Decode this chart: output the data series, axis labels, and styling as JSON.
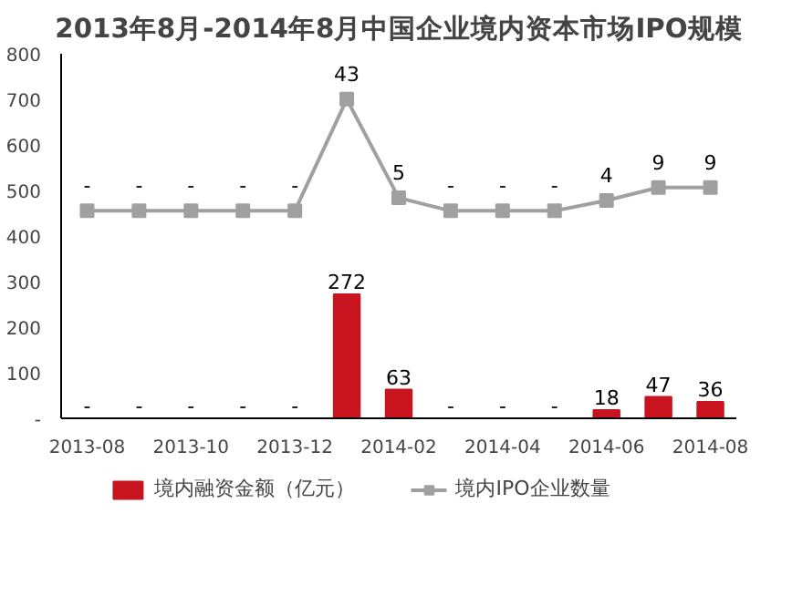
{
  "chart_data": {
    "type": "bar",
    "title": "2013年8月-2014年8月中国企业境内资本市场IPO规模",
    "categories": [
      "2013-08",
      null,
      "2013-10",
      null,
      "2013-12",
      null,
      "2014-02",
      null,
      "2014-04",
      null,
      "2014-06",
      null,
      "2014-08"
    ],
    "series": [
      {
        "name": "境内融资金额（亿元）",
        "color": "#c8141e",
        "values": [
          0,
          0,
          0,
          0,
          0,
          272,
          63,
          0,
          0,
          0,
          18,
          47,
          36
        ],
        "value_labels": [
          "-",
          "-",
          "-",
          "-",
          "-",
          "272",
          "63",
          "-",
          "-",
          "-",
          "18",
          "47",
          "36"
        ]
      },
      {
        "name": "境内IPO企业数量",
        "type": "line",
        "axis": "y2",
        "color": "#a0a0a0",
        "marker": "square",
        "values": [
          0,
          0,
          0,
          0,
          0,
          43,
          5,
          0,
          0,
          0,
          4,
          9,
          9
        ],
        "value_labels": [
          "-",
          "-",
          "-",
          "-",
          "-",
          "43",
          "5",
          "-",
          "-",
          "-",
          "4",
          "9",
          "9"
        ]
      }
    ],
    "ylim": [
      0,
      800
    ],
    "yticks": [
      {
        "value": 0,
        "label": "-"
      },
      100,
      200,
      300,
      400,
      500,
      600,
      700,
      800
    ],
    "y2lim": [
      -79.9,
      60.5
    ],
    "grid": false,
    "legend": "bottom"
  }
}
